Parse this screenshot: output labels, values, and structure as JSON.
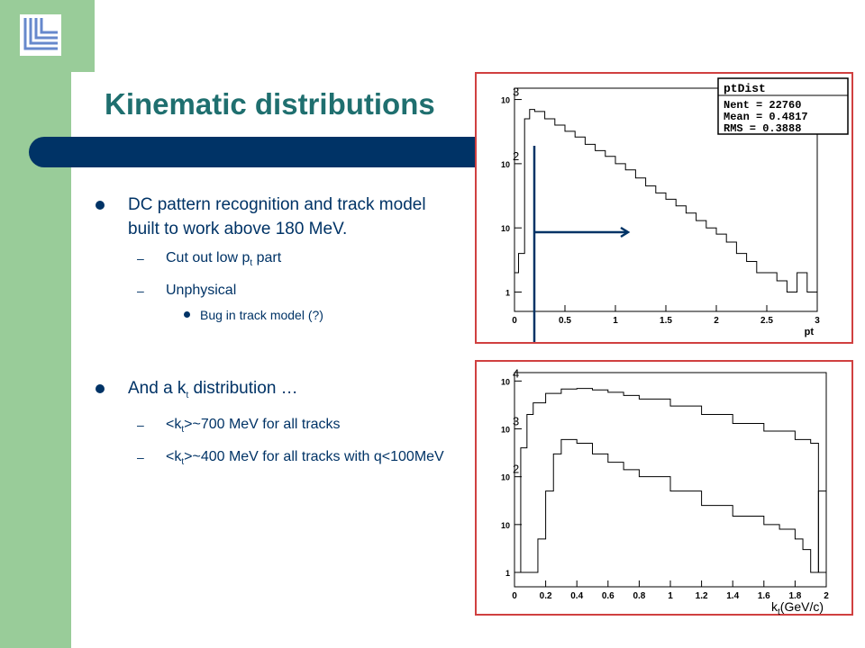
{
  "slide": {
    "title": "Kinematic distributions",
    "bullets": {
      "b1_text": "DC pattern recognition and track model built to work above 180 MeV.",
      "b1_sub1_pre": "Cut out low p",
      "b1_sub1_sub": "t",
      "b1_sub1_post": " part",
      "b1_sub2": "Unphysical",
      "b1_sub3": "Bug in track model (?)",
      "b2_pre": "And a k",
      "b2_sub": "t",
      "b2_post": " distribution …",
      "b2_sub1_pre": "<k",
      "b2_sub1_sub": "t",
      "b2_sub1_post": ">~700 MeV for all tracks",
      "b2_sub2_pre": "<k",
      "b2_sub2_sub": "t",
      "b2_sub2_post": ">~400 MeV for all tracks with q<100MeV"
    },
    "kt_axis_label": {
      "pre": "k",
      "sub": "t",
      "post": "(GeV/c)"
    },
    "accent_colors": {
      "title": "#1f6f6f",
      "bar": "#003366",
      "sidebar": "#99cc99",
      "plot_frame": "#d04040"
    }
  },
  "chart_data": [
    {
      "type": "line",
      "title": "",
      "xlabel": "pt",
      "ylabel": "",
      "xlim": [
        0,
        3
      ],
      "y_log": true,
      "ylim": [
        0.5,
        1500
      ],
      "xticks": [
        0,
        0.5,
        1,
        1.5,
        2,
        2.5,
        3
      ],
      "xtick_labels": [
        "0",
        "0.5",
        "1",
        "1.5",
        "2",
        "2.5",
        "3"
      ],
      "yticks": [
        1,
        10,
        100,
        1000
      ],
      "ytick_base": "10",
      "ytick_exps": [
        "",
        "",
        "2",
        "3"
      ],
      "ytick_plain": [
        "1",
        "10",
        "",
        ""
      ],
      "stats_box": {
        "name": "ptDist",
        "rows": [
          "Nent = 22760",
          "Mean  = 0.4817",
          "RMS   = 0.3888"
        ]
      },
      "series": [
        {
          "x": [
            0.0,
            0.04,
            0.1,
            0.15,
            0.2,
            0.3,
            0.4,
            0.5,
            0.6,
            0.7,
            0.8,
            0.9,
            1.0,
            1.1,
            1.2,
            1.3,
            1.4,
            1.5,
            1.6,
            1.7,
            1.8,
            1.9,
            2.0,
            2.1,
            2.2,
            2.3,
            2.4,
            2.5,
            2.6,
            2.7,
            2.8,
            2.9,
            3.0
          ],
          "y": [
            2,
            4,
            500,
            700,
            650,
            500,
            400,
            320,
            260,
            200,
            160,
            130,
            100,
            80,
            60,
            45,
            35,
            28,
            22,
            17,
            13,
            10,
            8,
            6,
            4,
            3,
            2,
            2,
            1.5,
            1,
            2,
            1,
            1
          ]
        }
      ]
    },
    {
      "type": "line",
      "title": "",
      "xlabel": "",
      "ylabel": "",
      "xlim": [
        0,
        2
      ],
      "y_log": true,
      "ylim": [
        0.5,
        15000
      ],
      "xticks": [
        0,
        0.2,
        0.4,
        0.6,
        0.8,
        1,
        1.2,
        1.4,
        1.6,
        1.8,
        2
      ],
      "xtick_labels": [
        "0",
        "0.2",
        "0.4",
        "0.6",
        "0.8",
        "1",
        "1.2",
        "1.4",
        "1.6",
        "1.8",
        "2"
      ],
      "yticks": [
        1,
        10,
        100,
        1000,
        10000
      ],
      "ytick_base": "10",
      "ytick_exps": [
        "",
        "",
        "2",
        "3",
        "4"
      ],
      "ytick_plain": [
        "1",
        "10",
        "",
        "",
        ""
      ],
      "series": [
        {
          "name": "",
          "x": [
            0.0,
            0.04,
            0.08,
            0.12,
            0.2,
            0.3,
            0.4,
            0.5,
            0.6,
            0.7,
            0.8,
            1.0,
            1.2,
            1.4,
            1.6,
            1.8,
            1.9,
            1.95,
            2.0
          ],
          "y": [
            1,
            400,
            2000,
            3500,
            5500,
            6800,
            7000,
            6500,
            5800,
            5000,
            4200,
            3000,
            2000,
            1300,
            900,
            600,
            500,
            1,
            1
          ]
        },
        {
          "name": "",
          "x": [
            0.0,
            0.1,
            0.15,
            0.2,
            0.25,
            0.3,
            0.4,
            0.5,
            0.6,
            0.7,
            0.8,
            1.0,
            1.2,
            1.4,
            1.6,
            1.7,
            1.8,
            1.85,
            1.9,
            1.95,
            2.0
          ],
          "y": [
            1,
            1,
            5,
            50,
            300,
            600,
            500,
            300,
            200,
            140,
            100,
            50,
            25,
            15,
            10,
            8,
            5,
            3,
            1,
            50,
            1
          ]
        }
      ]
    }
  ]
}
